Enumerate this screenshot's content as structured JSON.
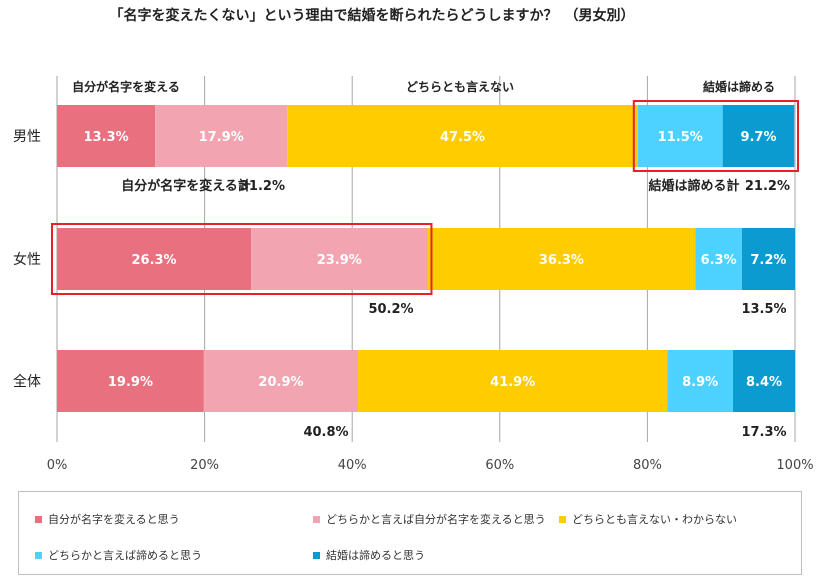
{
  "chart_data": {
    "type": "bar",
    "orientation": "horizontal",
    "stacked": true,
    "title": "「名字を変えたくない」という理由で結婚を断られたらどうしますか？　（男女別）",
    "categories": [
      "男性",
      "女性",
      "全体"
    ],
    "series": [
      {
        "name": "自分が名字を変えると思う",
        "color": "#e8707f",
        "values": [
          13.3,
          26.3,
          19.9
        ]
      },
      {
        "name": "どちらかと言えば自分が名字を変えると思う",
        "color": "#f2a5b0",
        "values": [
          17.9,
          23.9,
          20.9
        ]
      },
      {
        "name": "どちらとも言えない・わからない",
        "color": "#ffcc00",
        "values": [
          47.5,
          36.3,
          41.9
        ]
      },
      {
        "name": "どちらかと言えば諦めると思う",
        "color": "#4dd2ff",
        "values": [
          11.5,
          6.3,
          8.9
        ]
      },
      {
        "name": "結婚は諦めると思う",
        "color": "#0a9bd0",
        "values": [
          9.7,
          7.2,
          8.4
        ]
      }
    ],
    "value_labels": [
      [
        "13.3%",
        "17.9%",
        "47.5%",
        "11.5%",
        "9.7%"
      ],
      [
        "26.3%",
        "23.9%",
        "36.3%",
        "6.3%",
        "7.2%"
      ],
      [
        "19.9%",
        "20.9%",
        "41.9%",
        "8.9%",
        "8.4%"
      ]
    ],
    "xlim": [
      0,
      100
    ],
    "x_ticks": [
      "0%",
      "20%",
      "40%",
      "60%",
      "80%",
      "100%"
    ],
    "grid": true,
    "legend_position": "bottom",
    "group_headers": {
      "change_name": "自分が名字を変える",
      "neutral": "どちらとも言えない",
      "give_up": "結婚は諦める"
    },
    "totals": {
      "male_change_label": "自分が名字を変える計",
      "male_change": "31.2%",
      "male_giveup_label": "結婚は諦める計",
      "male_giveup": "21.2%",
      "female_change": "50.2%",
      "female_giveup": "13.5%",
      "all_change": "40.8%",
      "all_giveup": "17.3%"
    },
    "highlight_color": "#e8202a"
  }
}
